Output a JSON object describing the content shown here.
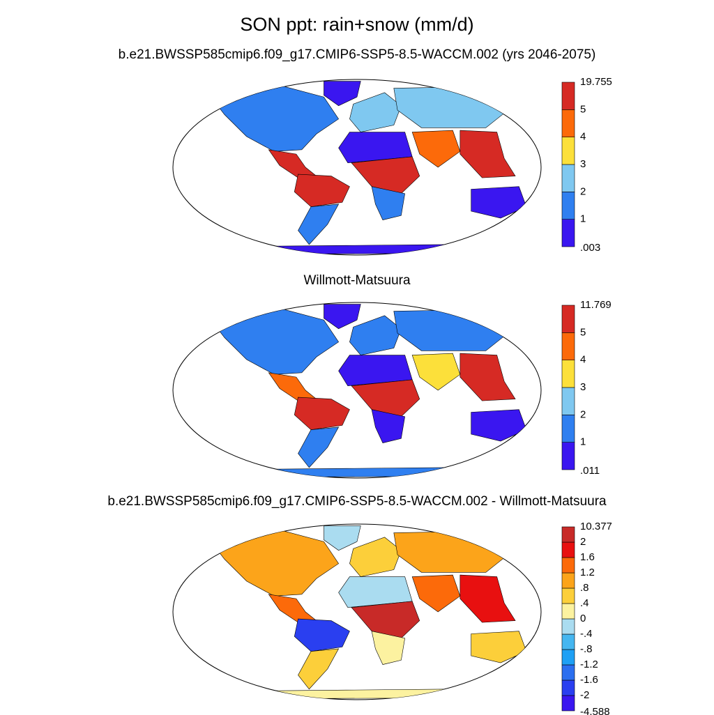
{
  "title": "SON ppt: rain+snow (mm/d)",
  "colors": {
    "precip": [
      "#3a16f0",
      "#2f7ff0",
      "#7fc8f0",
      "#fce03a",
      "#fc6a0a",
      "#d62a24"
    ],
    "diff": [
      "#3a16f0",
      "#2a3ff0",
      "#2b6ff0",
      "#1ea0f5",
      "#45b6f0",
      "#aadcf0",
      "#fcf2a0",
      "#fccf3a",
      "#fca41a",
      "#fc6a0a",
      "#e81010",
      "#c82a28"
    ],
    "land_outline": "#000000",
    "ocean": "#ffffff"
  },
  "panels": [
    {
      "subtitle": "b.e21.BWSSP585cmip6.f09_g17.CMIP6-SSP5-8.5-WACCM.002 (yrs 2046-2075)",
      "colorbar": {
        "max_label": "19.755",
        "min_label": ".003",
        "tick_labels": [
          "5",
          "4",
          "3",
          "2",
          "1"
        ]
      },
      "scheme": "precip"
    },
    {
      "subtitle": "Willmott-Matsuura",
      "colorbar": {
        "max_label": "11.769",
        "min_label": ".011",
        "tick_labels": [
          "5",
          "4",
          "3",
          "2",
          "1"
        ]
      },
      "scheme": "precip"
    },
    {
      "subtitle": "b.e21.BWSSP585cmip6.f09_g17.CMIP6-SSP5-8.5-WACCM.002 - Willmott-Matsuura",
      "colorbar": {
        "max_label": "10.377",
        "min_label": "-4.588",
        "tick_labels": [
          "2",
          "1.6",
          "1.2",
          ".8",
          ".4",
          "0",
          "-.4",
          "-.8",
          "-1.2",
          "-1.6",
          "-2"
        ]
      },
      "scheme": "diff"
    }
  ],
  "chart_data": {
    "type": "map",
    "projection": "Robinson",
    "variable": "ppt: rain+snow",
    "season": "SON",
    "units": "mm/d",
    "panels": [
      {
        "name": "b.e21.BWSSP585cmip6.f09_g17.CMIP6-SSP5-8.5-WACCM.002 (yrs 2046-2075)",
        "range": [
          0.003,
          19.755
        ],
        "levels": [
          1,
          2,
          3,
          4,
          5
        ],
        "regions": {
          "north_america": 1,
          "greenland": 0,
          "central_america": 5,
          "amazon": 5,
          "south_america_south": 1,
          "europe": 2,
          "sahara": 0,
          "africa_central": 5,
          "africa_south": 1,
          "siberia": 2,
          "south_asia": 4,
          "southeast_asia": 5,
          "australia": 0,
          "antarctica": 0
        }
      },
      {
        "name": "Willmott-Matsuura",
        "range": [
          0.011,
          11.769
        ],
        "levels": [
          1,
          2,
          3,
          4,
          5
        ],
        "regions": {
          "north_america": 1,
          "greenland": 0,
          "central_america": 4,
          "amazon": 5,
          "south_america_south": 1,
          "europe": 1,
          "sahara": 0,
          "africa_central": 5,
          "africa_south": 0,
          "siberia": 1,
          "south_asia": 3,
          "southeast_asia": 5,
          "australia": 0,
          "antarctica": 1
        }
      },
      {
        "name": "b.e21.BWSSP585cmip6.f09_g17.CMIP6-SSP5-8.5-WACCM.002 - Willmott-Matsuura",
        "range": [
          -4.588,
          10.377
        ],
        "levels": [
          -2,
          -1.6,
          -1.2,
          -0.8,
          -0.4,
          0,
          0.4,
          0.8,
          1.2,
          1.6,
          2
        ],
        "regions": {
          "north_america": 8,
          "greenland": 5,
          "central_america": 9,
          "amazon": 1,
          "south_america_south": 7,
          "europe": 7,
          "sahara": 5,
          "africa_central": 11,
          "africa_south": 6,
          "siberia": 8,
          "south_asia": 9,
          "southeast_asia": 10,
          "australia": 7,
          "antarctica": 6
        }
      }
    ]
  }
}
